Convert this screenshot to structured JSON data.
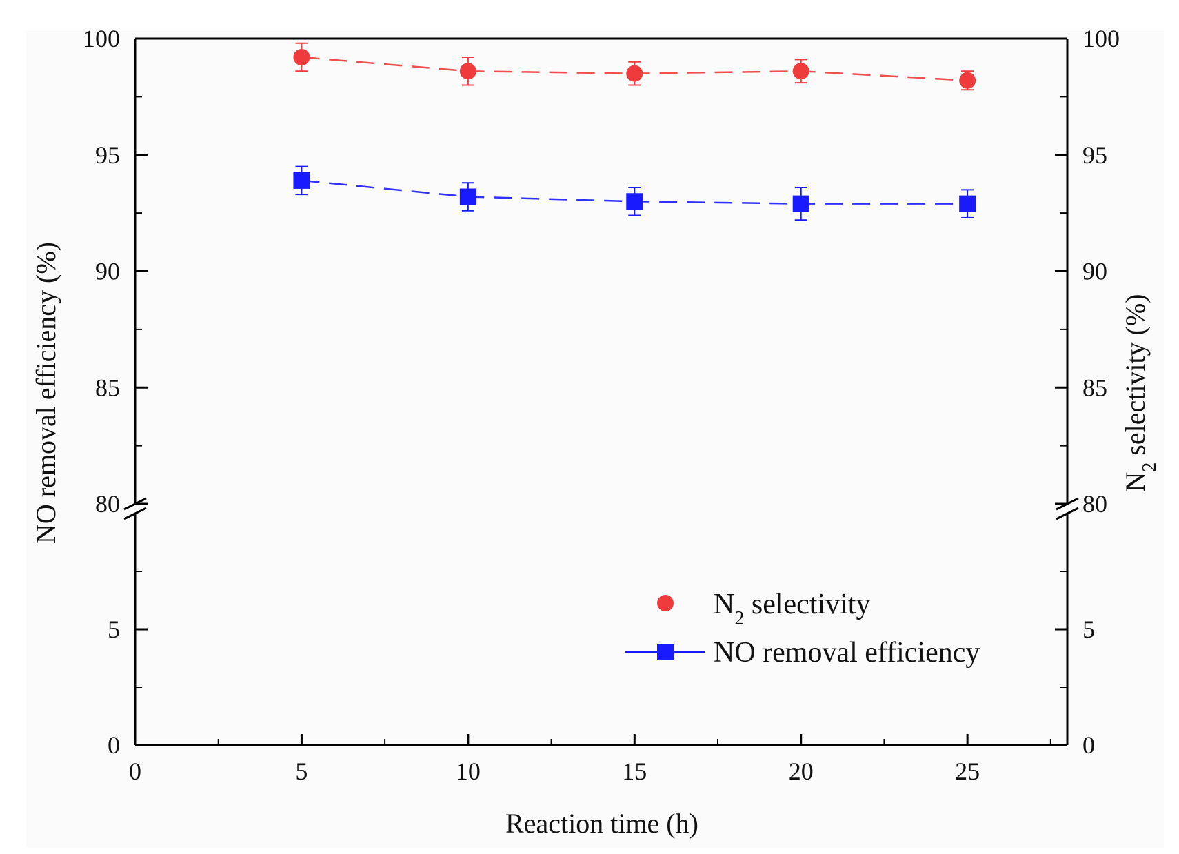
{
  "chart_data": {
    "type": "line",
    "xlabel": "Reaction time (h)",
    "ylabel_left": "NO removal efficiency (%)",
    "ylabel_right": {
      "main": "N",
      "sub": "2",
      "rest": " selectivity (%)"
    },
    "xlim": [
      0,
      28
    ],
    "x_ticks": [
      0,
      5,
      10,
      15,
      20,
      25
    ],
    "x_tick_labels": [
      "0",
      "5",
      "10",
      "15",
      "20",
      "25"
    ],
    "y_lower": {
      "range": [
        0,
        10
      ],
      "ticks": [
        0,
        5
      ],
      "tick_labels": [
        "0",
        "5"
      ]
    },
    "y_upper": {
      "range": [
        80,
        100
      ],
      "ticks": [
        80,
        85,
        90,
        95,
        100
      ],
      "tick_labels": [
        "80",
        "85",
        "90",
        "95",
        "100"
      ]
    },
    "axis_break": "between 10 and 80",
    "series": [
      {
        "name": "N2 selectivity",
        "legend": {
          "main": "N",
          "sub": "2",
          "rest": " selectivity"
        },
        "color": "#ef3b3b",
        "marker": "circle",
        "line": "dashed",
        "x": [
          5,
          10,
          15,
          20,
          25
        ],
        "y": [
          99.2,
          98.6,
          98.5,
          98.6,
          98.2
        ],
        "error": [
          0.6,
          0.6,
          0.5,
          0.5,
          0.4
        ]
      },
      {
        "name": "NO removal efficiency",
        "legend": {
          "main": "NO removal efficiency"
        },
        "color": "#1a1aff",
        "marker": "square",
        "line": "dashed",
        "x": [
          5,
          10,
          15,
          20,
          25
        ],
        "y": [
          93.9,
          93.2,
          93.0,
          92.9,
          92.9
        ],
        "error": [
          0.6,
          0.6,
          0.6,
          0.7,
          0.6
        ]
      }
    ],
    "legend_position": "lower-right"
  }
}
